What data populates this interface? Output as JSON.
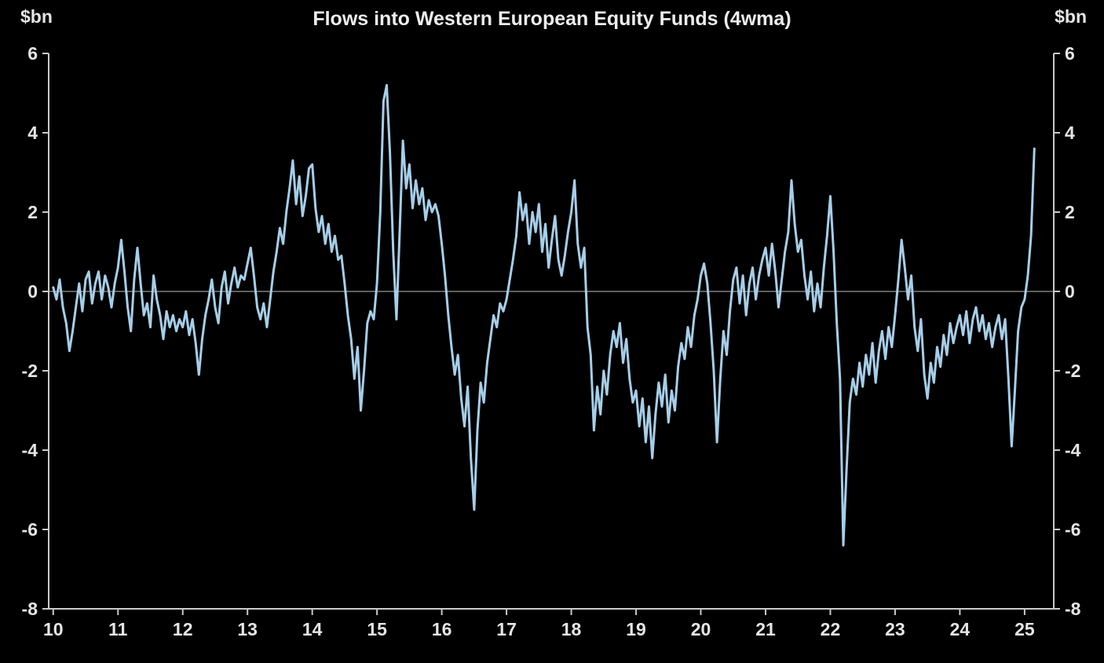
{
  "chart_data": {
    "type": "line",
    "title": "Flows into Western European Equity Funds (4wma)",
    "unit": "$bn",
    "xlabel": "",
    "ylabel": "$bn",
    "ylim": [
      -8,
      6
    ],
    "xlim": [
      9.93,
      25.45
    ],
    "y_ticks": [
      6,
      4,
      2,
      0,
      -2,
      -4,
      -6,
      -8
    ],
    "x_ticks": [
      10,
      11,
      12,
      13,
      14,
      15,
      16,
      17,
      18,
      19,
      20,
      21,
      22,
      23,
      24,
      25
    ],
    "grid": "horizontal-zero-line-only",
    "legend": "none",
    "background_color": "#000000",
    "axis_color": "#c9c9c9",
    "zero_line_color": "#7f7f7f",
    "series": [
      {
        "name": "Flows into Western European Equity Funds (4wma)",
        "color": "#a6cee8",
        "x_start": 10.0,
        "x_step": 0.05,
        "values": [
          0.1,
          -0.2,
          0.3,
          -0.4,
          -0.8,
          -1.5,
          -1.0,
          -0.4,
          0.2,
          -0.5,
          0.3,
          0.5,
          -0.3,
          0.2,
          0.5,
          -0.2,
          0.4,
          0.1,
          -0.4,
          0.2,
          0.6,
          1.3,
          0.5,
          -0.4,
          -1.0,
          0.3,
          1.1,
          0.2,
          -0.6,
          -0.3,
          -0.9,
          0.4,
          -0.2,
          -0.6,
          -1.2,
          -0.5,
          -0.9,
          -0.6,
          -1.0,
          -0.7,
          -0.9,
          -0.5,
          -1.1,
          -0.7,
          -1.3,
          -2.1,
          -1.2,
          -0.6,
          -0.2,
          0.3,
          -0.4,
          -0.8,
          0.1,
          0.5,
          -0.3,
          0.2,
          0.6,
          0.1,
          0.4,
          0.3,
          0.7,
          1.1,
          0.4,
          -0.4,
          -0.7,
          -0.3,
          -0.9,
          -0.2,
          0.5,
          1.0,
          1.6,
          1.2,
          2.0,
          2.6,
          3.3,
          2.2,
          2.9,
          1.9,
          2.4,
          3.1,
          3.2,
          2.1,
          1.5,
          1.9,
          1.2,
          1.7,
          1.0,
          1.4,
          0.8,
          0.9,
          0.2,
          -0.6,
          -1.2,
          -2.2,
          -1.4,
          -3.0,
          -2.0,
          -0.8,
          -0.5,
          -0.7,
          0.2,
          2.0,
          4.8,
          5.2,
          3.5,
          1.0,
          -0.7,
          1.5,
          3.8,
          2.6,
          3.2,
          2.1,
          2.8,
          2.2,
          2.6,
          1.8,
          2.3,
          2.0,
          2.2,
          1.9,
          1.2,
          0.4,
          -0.6,
          -1.4,
          -2.1,
          -1.6,
          -2.7,
          -3.4,
          -2.4,
          -4.2,
          -5.5,
          -3.5,
          -2.3,
          -2.8,
          -1.8,
          -1.2,
          -0.6,
          -0.9,
          -0.3,
          -0.5,
          -0.2,
          0.3,
          0.8,
          1.4,
          2.5,
          1.8,
          2.2,
          1.2,
          2.0,
          1.5,
          2.2,
          1.0,
          1.7,
          0.6,
          1.3,
          1.9,
          0.8,
          0.4,
          0.9,
          1.5,
          2.0,
          2.8,
          1.2,
          0.6,
          1.1,
          -0.9,
          -1.6,
          -3.5,
          -2.4,
          -3.1,
          -2.0,
          -2.6,
          -1.6,
          -1.0,
          -1.4,
          -0.8,
          -1.8,
          -1.2,
          -2.2,
          -2.8,
          -2.5,
          -3.4,
          -2.7,
          -3.8,
          -2.9,
          -4.2,
          -3.1,
          -2.3,
          -2.9,
          -2.1,
          -3.3,
          -2.5,
          -3.0,
          -1.9,
          -1.3,
          -1.7,
          -0.9,
          -1.4,
          -0.6,
          -0.2,
          0.4,
          0.7,
          0.2,
          -0.8,
          -2.0,
          -3.8,
          -2.2,
          -1.0,
          -1.6,
          -0.5,
          0.3,
          0.6,
          -0.3,
          0.4,
          -0.6,
          0.2,
          0.6,
          -0.2,
          0.4,
          0.8,
          1.1,
          0.4,
          1.2,
          0.5,
          -0.4,
          0.3,
          1.0,
          1.5,
          2.8,
          1.7,
          1.0,
          1.3,
          0.4,
          -0.2,
          0.5,
          -0.5,
          0.2,
          -0.4,
          0.6,
          1.4,
          2.4,
          1.0,
          -0.8,
          -2.2,
          -6.4,
          -4.5,
          -2.8,
          -2.2,
          -2.6,
          -1.8,
          -2.4,
          -1.6,
          -2.1,
          -1.3,
          -2.3,
          -1.5,
          -1.0,
          -1.7,
          -0.9,
          -1.4,
          -0.6,
          0.3,
          1.3,
          0.6,
          -0.2,
          0.4,
          -0.9,
          -1.5,
          -0.7,
          -2.1,
          -2.7,
          -1.8,
          -2.3,
          -1.4,
          -1.9,
          -1.1,
          -1.6,
          -0.8,
          -1.3,
          -0.9,
          -0.6,
          -1.1,
          -0.5,
          -1.3,
          -0.7,
          -0.4,
          -1.0,
          -0.6,
          -1.2,
          -0.8,
          -1.4,
          -0.9,
          -0.6,
          -1.2,
          -0.7,
          -2.2,
          -3.9,
          -2.5,
          -1.0,
          -0.4,
          -0.2,
          0.4,
          1.4,
          3.6
        ]
      }
    ]
  }
}
